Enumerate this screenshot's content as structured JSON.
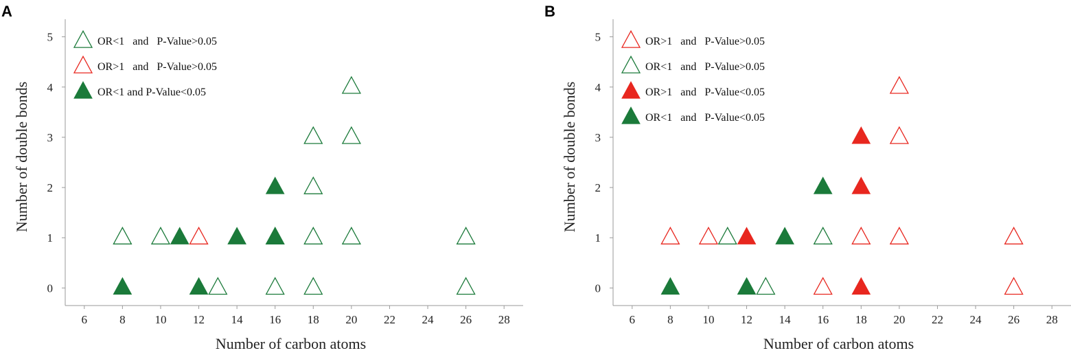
{
  "colors": {
    "green": "#1b7a3a",
    "red": "#e8271f",
    "axis": "#9a9a9a"
  },
  "chart_data": [
    {
      "panel_label": "A",
      "type": "scatter",
      "xlabel": "Number of carbon atoms",
      "ylabel": "Number of double bonds",
      "xlim": [
        5,
        29
      ],
      "ylim": [
        -0.35,
        5.35
      ],
      "xticks": [
        6,
        8,
        10,
        12,
        14,
        16,
        18,
        20,
        22,
        24,
        26,
        28
      ],
      "yticks": [
        0,
        1,
        2,
        3,
        4,
        5
      ],
      "grid": false,
      "legend_position": "top-left",
      "series": [
        {
          "name": "OR<1   and   P-Value>0.05",
          "marker": "open-triangle",
          "color": "#1b7a3a",
          "points": [
            [
              8,
              1
            ],
            [
              10,
              1
            ],
            [
              13,
              0
            ],
            [
              16,
              0
            ],
            [
              16,
              1
            ],
            [
              18,
              0
            ],
            [
              18,
              1
            ],
            [
              18,
              2
            ],
            [
              18,
              3
            ],
            [
              20,
              1
            ],
            [
              20,
              3
            ],
            [
              20,
              4
            ],
            [
              26,
              0
            ],
            [
              26,
              1
            ]
          ]
        },
        {
          "name": "OR>1   and   P-Value>0.05",
          "marker": "open-triangle",
          "color": "#e8271f",
          "points": [
            [
              12,
              1
            ]
          ]
        },
        {
          "name": "OR<1 and P-Value<0.05",
          "marker": "filled-triangle",
          "color": "#1b7a3a",
          "points": [
            [
              8,
              0
            ],
            [
              11,
              1
            ],
            [
              12,
              0
            ],
            [
              14,
              1
            ],
            [
              16,
              1
            ],
            [
              16,
              2
            ]
          ]
        }
      ]
    },
    {
      "panel_label": "B",
      "type": "scatter",
      "xlabel": "Number of carbon atoms",
      "ylabel": "Number of double bonds",
      "xlim": [
        5,
        29
      ],
      "ylim": [
        -0.35,
        5.35
      ],
      "xticks": [
        6,
        8,
        10,
        12,
        14,
        16,
        18,
        20,
        22,
        24,
        26,
        28
      ],
      "yticks": [
        0,
        1,
        2,
        3,
        4,
        5
      ],
      "grid": false,
      "legend_position": "top-left",
      "series": [
        {
          "name": "OR>1   and   P-Value>0.05",
          "marker": "open-triangle",
          "color": "#e8271f",
          "points": [
            [
              8,
              1
            ],
            [
              10,
              1
            ],
            [
              16,
              0
            ],
            [
              18,
              1
            ],
            [
              20,
              1
            ],
            [
              20,
              3
            ],
            [
              20,
              4
            ],
            [
              26,
              0
            ],
            [
              26,
              1
            ]
          ]
        },
        {
          "name": "OR<1   and   P-Value>0.05",
          "marker": "open-triangle",
          "color": "#1b7a3a",
          "points": [
            [
              11,
              1
            ],
            [
              13,
              0
            ],
            [
              16,
              1
            ]
          ]
        },
        {
          "name": "OR>1   and   P-Value<0.05",
          "marker": "filled-triangle",
          "color": "#e8271f",
          "points": [
            [
              12,
              1
            ],
            [
              18,
              0
            ],
            [
              18,
              2
            ],
            [
              18,
              3
            ]
          ]
        },
        {
          "name": "OR<1   and   P-Value<0.05",
          "marker": "filled-triangle",
          "color": "#1b7a3a",
          "points": [
            [
              8,
              0
            ],
            [
              12,
              0
            ],
            [
              14,
              1
            ],
            [
              16,
              2
            ]
          ]
        }
      ]
    }
  ]
}
